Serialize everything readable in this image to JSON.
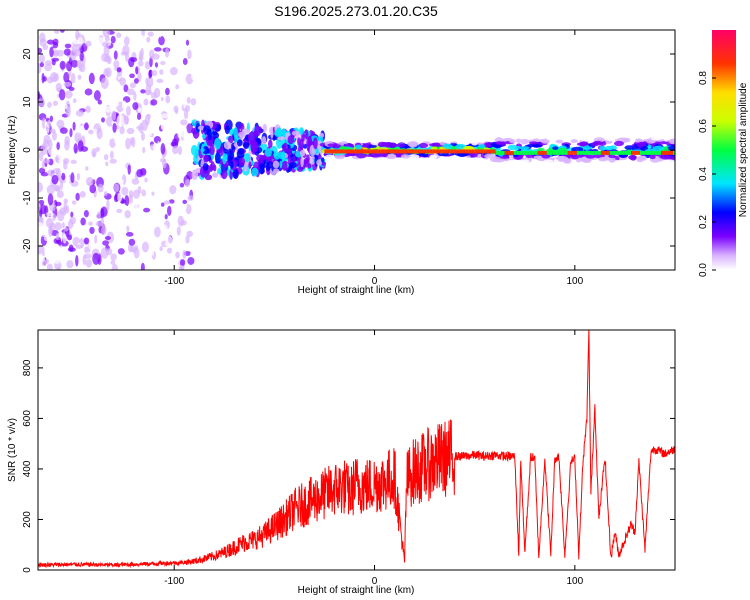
{
  "title": "S196.2025.273.01.20.C35",
  "chart_data": [
    {
      "type": "heatmap",
      "name": "spectrogram",
      "xlabel": "Height of straight line (km)",
      "ylabel": "Frequency (Hz)",
      "xlim": [
        -168,
        150
      ],
      "ylim": [
        -25,
        25
      ],
      "xticks": [
        -100,
        0,
        100
      ],
      "xtick_labels": [
        "-100",
        "0",
        "100"
      ],
      "yticks": [
        -20,
        -10,
        0,
        10,
        20
      ],
      "ytick_labels": [
        "-20",
        "-10",
        "0",
        "10",
        "20"
      ],
      "colorbar": {
        "label": "Normalized spectral amplitude",
        "range": [
          0,
          1
        ],
        "ticks": [
          0.0,
          0.2,
          0.4,
          0.6,
          0.8
        ],
        "tick_labels": [
          "0.0",
          "0.2",
          "0.4",
          "0.6",
          "0.8"
        ],
        "stops": [
          "#ffffff",
          "#d9b3ff",
          "#7a00ff",
          "#0000ff",
          "#00e5ff",
          "#00ff40",
          "#ccff00",
          "#ffdd00",
          "#ff3300",
          "#ff0066"
        ]
      },
      "description_regions": [
        {
          "x_range": [
            -168,
            -90
          ],
          "y_range": [
            -25,
            25
          ],
          "pattern": "scattered",
          "amplitude": 0.15
        },
        {
          "x_range": [
            -90,
            -25
          ],
          "y_range": [
            -6,
            6
          ],
          "pattern": "cluster",
          "amplitude": 0.35
        },
        {
          "x_range": [
            -25,
            60
          ],
          "y_range": [
            -1.5,
            1.5
          ],
          "pattern": "band",
          "amplitude": 0.85
        },
        {
          "x_range": [
            60,
            150
          ],
          "y_range": [
            -2.5,
            2.5
          ],
          "pattern": "band",
          "amplitude": 0.55
        }
      ]
    },
    {
      "type": "line",
      "name": "snr",
      "xlabel": "Height of straight line (km)",
      "ylabel": "SNR (10 * v/v)",
      "xlim": [
        -168,
        150
      ],
      "ylim": [
        0,
        950
      ],
      "xticks": [
        -100,
        0,
        100
      ],
      "xtick_labels": [
        "-100",
        "0",
        "100"
      ],
      "yticks": [
        0,
        200,
        400,
        600,
        800
      ],
      "ytick_labels": [
        "0",
        "200",
        "400",
        "600",
        "800"
      ],
      "color": "#ff0000",
      "series": [
        {
          "name": "SNR",
          "x": [
            -168,
            -150,
            -130,
            -110,
            -95,
            -90,
            -85,
            -80,
            -75,
            -70,
            -65,
            -60,
            -55,
            -50,
            -45,
            -40,
            -35,
            -30,
            -25,
            -20,
            -15,
            -12,
            -10,
            -5,
            0,
            5,
            10,
            15,
            16,
            18,
            20,
            25,
            30,
            35,
            40,
            45,
            50,
            55,
            60,
            65,
            70,
            72,
            73,
            75,
            78,
            80,
            82,
            85,
            88,
            90,
            92,
            95,
            98,
            100,
            102,
            104,
            106,
            107,
            108,
            110,
            112,
            115,
            118,
            120,
            122,
            125,
            128,
            130,
            132,
            135,
            138,
            140,
            145,
            150
          ],
          "values": [
            20,
            22,
            20,
            25,
            30,
            35,
            45,
            55,
            70,
            90,
            110,
            120,
            140,
            170,
            200,
            240,
            260,
            280,
            300,
            320,
            330,
            300,
            340,
            330,
            340,
            350,
            370,
            30,
            350,
            380,
            390,
            410,
            430,
            440,
            450,
            450,
            455,
            450,
            455,
            450,
            450,
            60,
            440,
            70,
            450,
            440,
            50,
            440,
            60,
            440,
            450,
            60,
            430,
            440,
            60,
            420,
            600,
            950,
            300,
            650,
            200,
            450,
            50,
            150,
            60,
            120,
            180,
            150,
            430,
            80,
            470,
            480,
            460,
            480
          ]
        }
      ]
    }
  ]
}
